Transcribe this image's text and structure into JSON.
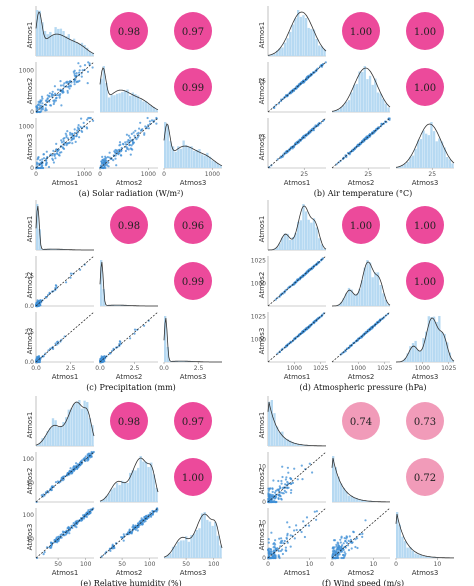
{
  "figure": {
    "colors": {
      "point": "#3f8fd6",
      "hist": "#b6d9f2",
      "density": "#333333",
      "fit": "#1a1a1a",
      "corr_strong": "#ec4a9b",
      "corr_weak": "#f19bb9"
    },
    "variables": [
      "Atmos1",
      "Atmos2",
      "Atmos3"
    ]
  },
  "chart_data": [
    {
      "type": "pairplot",
      "title": "(a)  Solar radiation (W/m²)",
      "variables": [
        "Atmos1",
        "Atmos2",
        "Atmos3"
      ],
      "axis_ticks": [
        0,
        1000
      ],
      "axis_range": [
        0,
        1200
      ],
      "correlations": [
        {
          "row": "Atmos1",
          "col": "Atmos2",
          "r": "0.98"
        },
        {
          "row": "Atmos1",
          "col": "Atmos3",
          "r": "0.97"
        },
        {
          "row": "Atmos2",
          "col": "Atmos3",
          "r": "0.99"
        }
      ],
      "distribution": "skewed",
      "spread": 0.09
    },
    {
      "type": "pairplot",
      "title": "(b)  Air temperature (°C)",
      "variables": [
        "Atmos1",
        "Atmos2",
        "Atmos3"
      ],
      "axis_ticks": [
        25
      ],
      "axis_range": [
        0,
        40
      ],
      "correlations": [
        {
          "row": "Atmos1",
          "col": "Atmos2",
          "r": "1.00"
        },
        {
          "row": "Atmos1",
          "col": "Atmos3",
          "r": "1.00"
        },
        {
          "row": "Atmos2",
          "col": "Atmos3",
          "r": "1.00"
        }
      ],
      "distribution": "normal",
      "spread": 0.012
    },
    {
      "type": "pairplot",
      "title": "(c)  Precipitation (mm)",
      "variables": [
        "Atmos1",
        "Atmos2",
        "Atmos3"
      ],
      "axis_ticks": [
        0.0,
        2.5
      ],
      "axis_ticks_labels": [
        "0.0",
        "2.5"
      ],
      "axis_range": [
        0,
        4.2
      ],
      "correlations": [
        {
          "row": "Atmos1",
          "col": "Atmos2",
          "r": "0.98"
        },
        {
          "row": "Atmos1",
          "col": "Atmos3",
          "r": "0.96"
        },
        {
          "row": "Atmos2",
          "col": "Atmos3",
          "r": "0.99"
        }
      ],
      "distribution": "spike",
      "spread": 0.03
    },
    {
      "type": "pairplot",
      "title": "(d)  Atmospheric pressure (hPa)",
      "variables": [
        "Atmos1",
        "Atmos2",
        "Atmos3"
      ],
      "axis_ticks": [
        1000,
        1025
      ],
      "axis_range": [
        975,
        1030
      ],
      "correlations": [
        {
          "row": "Atmos1",
          "col": "Atmos2",
          "r": "1.00"
        },
        {
          "row": "Atmos1",
          "col": "Atmos3",
          "r": "1.00"
        },
        {
          "row": "Atmos2",
          "col": "Atmos3",
          "r": "1.00"
        }
      ],
      "distribution": "leftpeak",
      "spread": 0.008
    },
    {
      "type": "pairplot",
      "title": "(e)  Relative humidity (%)",
      "variables": [
        "Atmos1",
        "Atmos2",
        "Atmos3"
      ],
      "axis_ticks": [
        50,
        100
      ],
      "axis_range": [
        10,
        115
      ],
      "correlations": [
        {
          "row": "Atmos1",
          "col": "Atmos2",
          "r": "0.98"
        },
        {
          "row": "Atmos1",
          "col": "Atmos3",
          "r": "0.97"
        },
        {
          "row": "Atmos2",
          "col": "Atmos3",
          "r": "1.00"
        }
      ],
      "distribution": "wide",
      "spread": 0.03
    },
    {
      "type": "pairplot",
      "title": "(f)  Wind speed (m/s)",
      "variables": [
        "Atmos1",
        "Atmos2",
        "Atmos3"
      ],
      "axis_ticks": [
        0,
        10
      ],
      "axis_range": [
        0,
        14
      ],
      "correlations": [
        {
          "row": "Atmos1",
          "col": "Atmos2",
          "r": "0.74"
        },
        {
          "row": "Atmos1",
          "col": "Atmos3",
          "r": "0.73"
        },
        {
          "row": "Atmos2",
          "col": "Atmos3",
          "r": "0.72"
        }
      ],
      "distribution": "exp",
      "spread": 0.14
    }
  ]
}
